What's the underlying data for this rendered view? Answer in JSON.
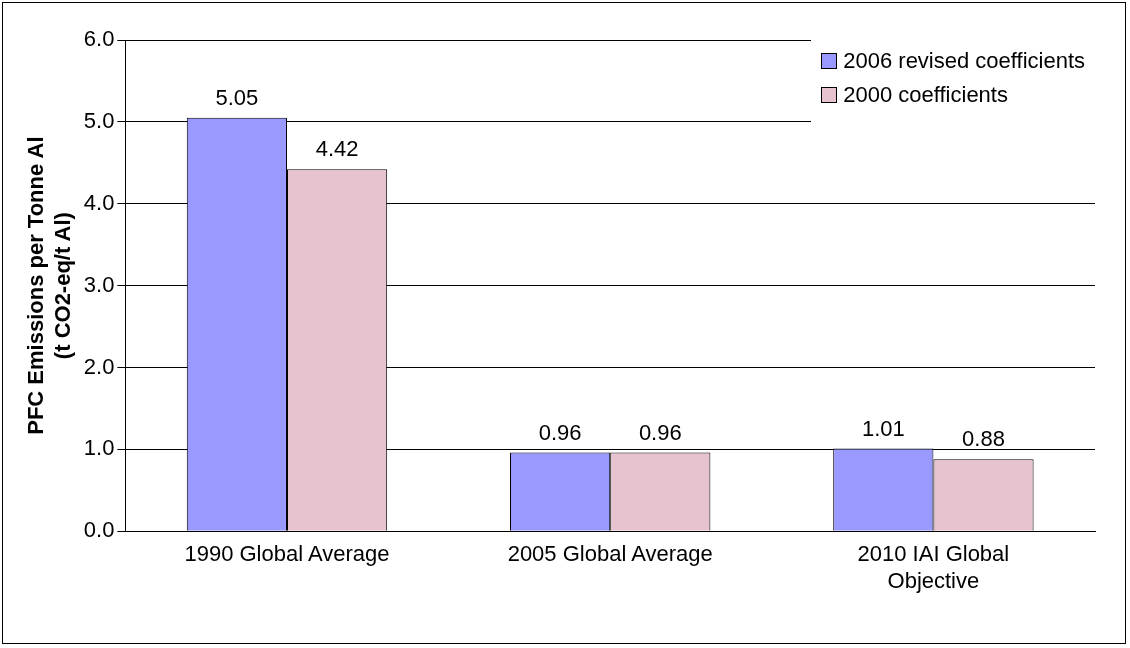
{
  "chart_data": {
    "type": "bar",
    "ylabel": "PFC Emissions per Tonne Al\n(t CO2-eq/t Al)",
    "categories": [
      "1990 Global Average",
      "2005 Global Average",
      "2010 IAI Global Objective"
    ],
    "series": [
      {
        "name": "2006 revised coefficients",
        "color": "#9999ff",
        "values": [
          5.05,
          0.96,
          1.01
        ]
      },
      {
        "name": "2000 coefficients",
        "color": "#e6c3cf",
        "values": [
          4.42,
          0.96,
          0.88
        ]
      }
    ],
    "ylim": [
      0,
      6
    ],
    "yticks": [
      {
        "value": 0,
        "label": "0.0"
      },
      {
        "value": 1,
        "label": "1.0"
      },
      {
        "value": 2,
        "label": "2.0"
      },
      {
        "value": 3,
        "label": "3.0"
      },
      {
        "value": 4,
        "label": "4.0"
      },
      {
        "value": 5,
        "label": "5.0"
      },
      {
        "value": 6,
        "label": "6.0"
      }
    ],
    "grid": "y",
    "legend": "top right",
    "data_labels": true
  }
}
